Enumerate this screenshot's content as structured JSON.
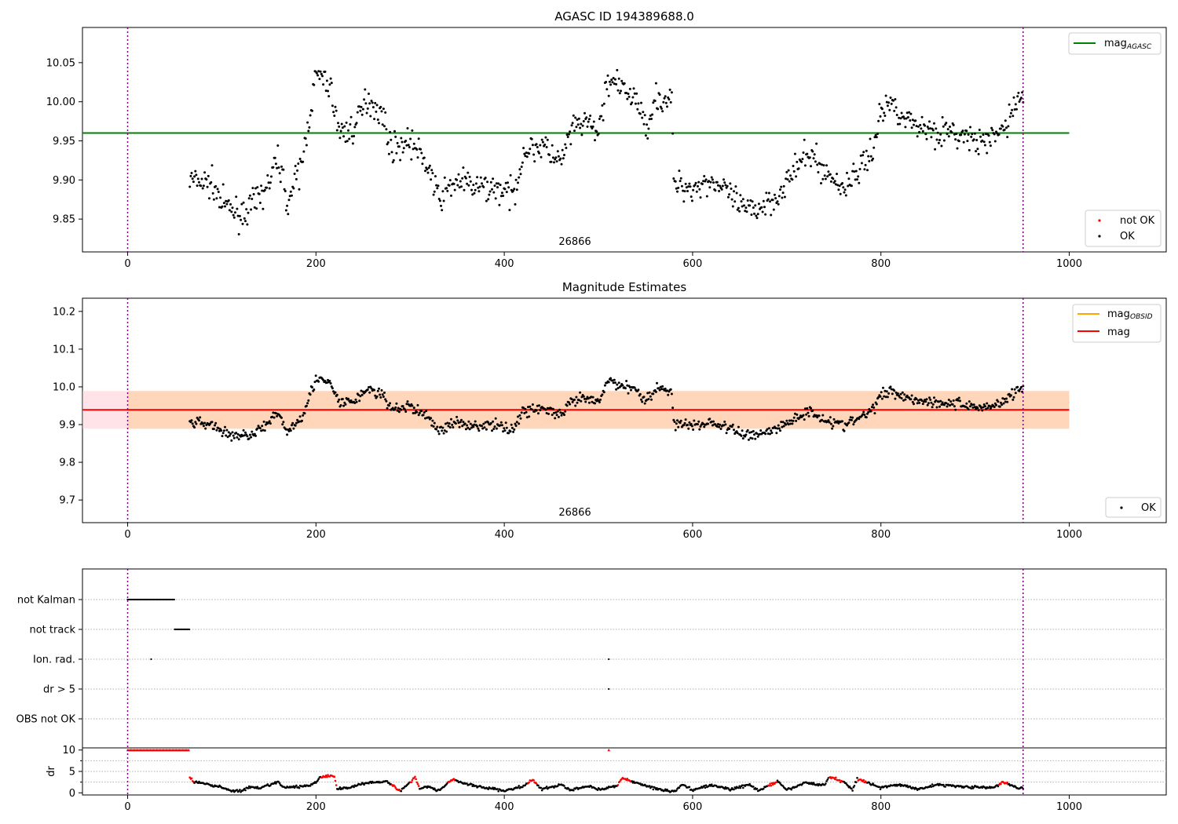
{
  "chart_data": [
    {
      "type": "scatter",
      "title": "AGASC ID 194389688.0",
      "xlim": [
        -48,
        1103
      ],
      "ylim": [
        9.808,
        10.095
      ],
      "xticks": [
        0,
        200,
        400,
        600,
        800,
        1000
      ],
      "yticks": [
        9.85,
        9.9,
        9.95,
        10.0,
        10.05
      ],
      "annotation": "26866",
      "vlines": [
        0,
        951
      ],
      "hlines": [
        {
          "name": "mag",
          "sub": "AGASC",
          "value": 9.96,
          "x_range": [
            -48,
            1000
          ],
          "color": "#008000"
        }
      ],
      "legend_upper": {
        "position": "upper-right",
        "entries": [
          {
            "label": "mag",
            "sub": "AGASC",
            "color": "#008000"
          }
        ]
      },
      "legend_lower": {
        "position": "lower-right",
        "entries": [
          {
            "label": "not OK",
            "color": "#ff0000"
          },
          {
            "label": "OK",
            "color": "#000000"
          }
        ]
      },
      "series_profile": {
        "name": "OK",
        "x_range": [
          66,
          951
        ],
        "anchors": [
          [
            66,
            9.9
          ],
          [
            90,
            9.895
          ],
          [
            100,
            9.87
          ],
          [
            120,
            9.855
          ],
          [
            135,
            9.87
          ],
          [
            150,
            9.895
          ],
          [
            160,
            9.93
          ],
          [
            170,
            9.87
          ],
          [
            185,
            9.92
          ],
          [
            200,
            10.035
          ],
          [
            215,
            10.02
          ],
          [
            225,
            9.96
          ],
          [
            240,
            9.965
          ],
          [
            255,
            10.005
          ],
          [
            270,
            9.985
          ],
          [
            280,
            9.94
          ],
          [
            300,
            9.95
          ],
          [
            320,
            9.915
          ],
          [
            330,
            9.875
          ],
          [
            350,
            9.9
          ],
          [
            370,
            9.89
          ],
          [
            390,
            9.89
          ],
          [
            410,
            9.88
          ],
          [
            420,
            9.935
          ],
          [
            440,
            9.945
          ],
          [
            460,
            9.92
          ],
          [
            470,
            9.96
          ],
          [
            485,
            9.975
          ],
          [
            500,
            9.96
          ],
          [
            510,
            10.03
          ],
          [
            525,
            10.015
          ],
          [
            540,
            10.005
          ],
          [
            550,
            9.965
          ],
          [
            560,
            10.005
          ],
          [
            578,
            10.0
          ],
          [
            580,
            9.895
          ],
          [
            600,
            9.89
          ],
          [
            620,
            9.9
          ],
          [
            640,
            9.88
          ],
          [
            655,
            9.86
          ],
          [
            670,
            9.865
          ],
          [
            690,
            9.88
          ],
          [
            710,
            9.915
          ],
          [
            725,
            9.935
          ],
          [
            740,
            9.91
          ],
          [
            760,
            9.89
          ],
          [
            775,
            9.91
          ],
          [
            790,
            9.935
          ],
          [
            800,
            9.985
          ],
          [
            810,
            10.0
          ],
          [
            830,
            9.975
          ],
          [
            850,
            9.965
          ],
          [
            870,
            9.96
          ],
          [
            890,
            9.955
          ],
          [
            910,
            9.945
          ],
          [
            930,
            9.965
          ],
          [
            940,
            9.99
          ],
          [
            951,
            10.01
          ]
        ],
        "noise": 0.015,
        "count": 900
      }
    },
    {
      "type": "scatter",
      "title": "Magnitude Estimates",
      "xlim": [
        -48,
        1103
      ],
      "ylim": [
        9.64,
        10.235
      ],
      "xticks": [
        0,
        200,
        400,
        600,
        800,
        1000
      ],
      "yticks": [
        9.7,
        9.8,
        9.9,
        10.0,
        10.1,
        10.2
      ],
      "annotation": "26866",
      "vlines": [
        0,
        951
      ],
      "bands": [
        {
          "y": [
            9.889,
            9.989
          ],
          "x_range": [
            -48,
            1000
          ],
          "color": "#ffc0cb",
          "opacity": 0.45
        },
        {
          "y": [
            9.889,
            9.989
          ],
          "x_range": [
            0,
            1000
          ],
          "color": "#ffa500",
          "opacity": 0.2
        }
      ],
      "hlines": [
        {
          "name": "mag",
          "sub": "OBSID",
          "value": 9.939,
          "x_range": [
            0,
            1000
          ],
          "color": "#ffa500"
        },
        {
          "name": "mag",
          "value": 9.939,
          "x_range": [
            -48,
            1000
          ],
          "color": "#ff0000"
        }
      ],
      "legend_upper": {
        "position": "upper-right",
        "entries": [
          {
            "label": "mag",
            "sub": "OBSID",
            "color": "#ffa500"
          },
          {
            "label": "mag",
            "color": "#ff0000"
          }
        ]
      },
      "legend_lower": {
        "position": "lower-right",
        "entries": [
          {
            "label": "OK",
            "color": "#000000"
          }
        ]
      }
    },
    {
      "type": "scatter",
      "title": "",
      "xlim": [
        -48,
        1103
      ],
      "categories": [
        "not Kalman",
        "not track",
        "Ion. rad.",
        "dr > 5",
        "OBS not OK"
      ],
      "vlines": [
        0,
        951
      ],
      "flags": [
        {
          "category": "not Kalman",
          "x_range": [
            0,
            50
          ]
        },
        {
          "category": "not track",
          "x_range": [
            50,
            66
          ]
        },
        {
          "category": "Ion. rad.",
          "x": [
            25,
            511
          ]
        },
        {
          "category": "dr > 5",
          "x": [
            511
          ]
        }
      ]
    },
    {
      "type": "scatter",
      "xlim": [
        -48,
        1103
      ],
      "ylim": [
        -0.5,
        10.5
      ],
      "ylabel": "dr",
      "xticks": [
        0,
        200,
        400,
        600,
        800,
        1000
      ],
      "yticks": [
        0,
        5,
        10
      ],
      "series_saturated": {
        "name": "not OK",
        "x_range": [
          0,
          66
        ],
        "value": 10,
        "extra_x": [
          511
        ]
      },
      "series_profile": {
        "x_range": [
          66,
          951
        ],
        "anchors": [
          [
            66,
            3.6
          ],
          [
            70,
            2.6
          ],
          [
            80,
            2.2
          ],
          [
            100,
            1.3
          ],
          [
            110,
            0.5
          ],
          [
            120,
            0.4
          ],
          [
            130,
            1.3
          ],
          [
            140,
            1.0
          ],
          [
            150,
            1.8
          ],
          [
            160,
            2.6
          ],
          [
            165,
            1.2
          ],
          [
            190,
            1.6
          ],
          [
            200,
            2.4
          ],
          [
            205,
            3.8
          ],
          [
            220,
            3.9
          ],
          [
            222,
            0.8
          ],
          [
            240,
            1.5
          ],
          [
            250,
            2.2
          ],
          [
            265,
            2.6
          ],
          [
            275,
            2.7
          ],
          [
            290,
            0.4
          ],
          [
            300,
            2.5
          ],
          [
            305,
            3.8
          ],
          [
            310,
            1.0
          ],
          [
            320,
            1.5
          ],
          [
            330,
            0.5
          ],
          [
            345,
            3.2
          ],
          [
            360,
            2.0
          ],
          [
            380,
            1.2
          ],
          [
            400,
            0.5
          ],
          [
            420,
            1.5
          ],
          [
            430,
            3.0
          ],
          [
            440,
            0.8
          ],
          [
            460,
            1.9
          ],
          [
            470,
            0.6
          ],
          [
            490,
            1.6
          ],
          [
            500,
            0.8
          ],
          [
            520,
            1.6
          ],
          [
            525,
            3.4
          ],
          [
            540,
            2.4
          ],
          [
            560,
            1.0
          ],
          [
            580,
            0.3
          ],
          [
            590,
            1.9
          ],
          [
            600,
            0.7
          ],
          [
            620,
            1.8
          ],
          [
            640,
            0.8
          ],
          [
            660,
            1.9
          ],
          [
            670,
            0.5
          ],
          [
            690,
            2.7
          ],
          [
            700,
            0.6
          ],
          [
            720,
            2.4
          ],
          [
            740,
            1.7
          ],
          [
            745,
            3.8
          ],
          [
            760,
            2.6
          ],
          [
            770,
            0.8
          ],
          [
            775,
            3.3
          ],
          [
            785,
            2.5
          ],
          [
            800,
            1.2
          ],
          [
            820,
            1.9
          ],
          [
            840,
            0.9
          ],
          [
            860,
            1.9
          ],
          [
            880,
            1.6
          ],
          [
            900,
            1.3
          ],
          [
            920,
            1.2
          ],
          [
            930,
            2.5
          ],
          [
            940,
            1.6
          ],
          [
            951,
            1.0
          ]
        ],
        "red_x": [
          [
            66,
            70
          ],
          [
            205,
            222
          ],
          [
            280,
            290
          ],
          [
            300,
            310
          ],
          [
            340,
            348
          ],
          [
            425,
            435
          ],
          [
            520,
            535
          ],
          [
            680,
            690
          ],
          [
            745,
            760
          ],
          [
            775,
            785
          ],
          [
            925,
            935
          ]
        ],
        "noise": 0.25,
        "count": 900
      }
    }
  ]
}
